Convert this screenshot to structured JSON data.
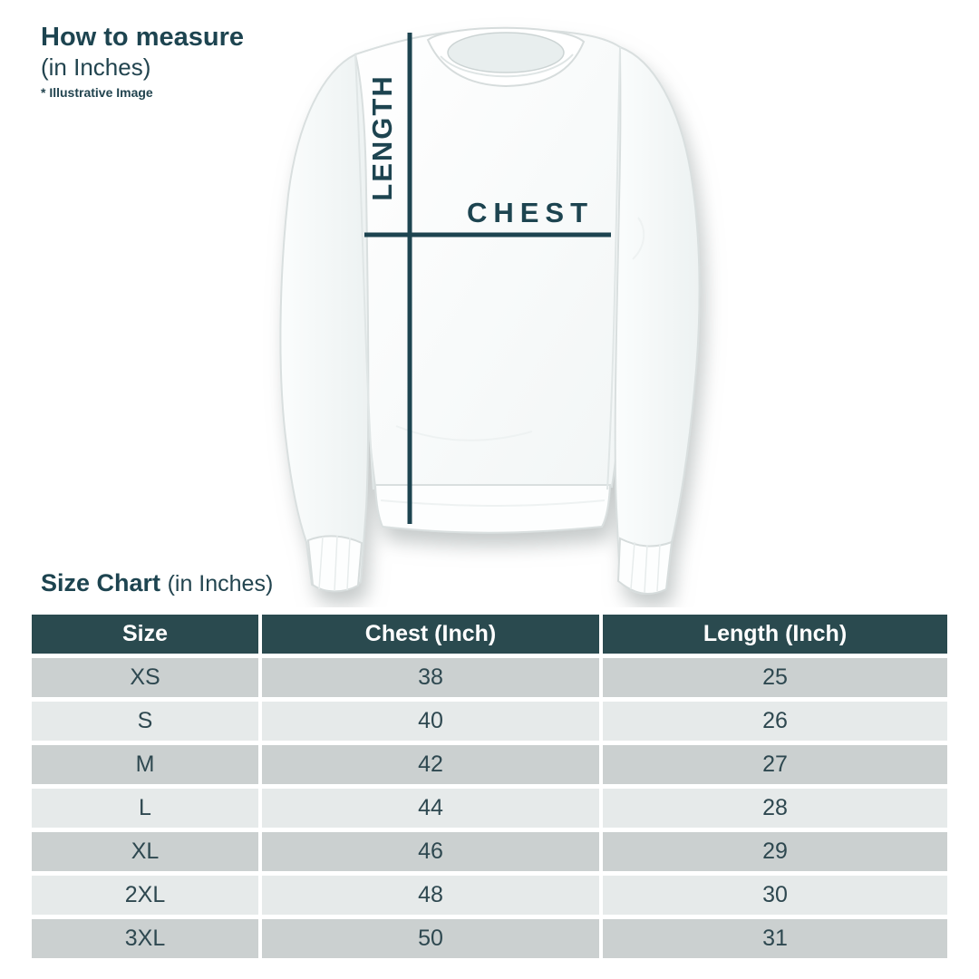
{
  "colors": {
    "accent_text": "#1d4450",
    "measure_line": "#1d4450",
    "table_header_bg": "#2a4a4f",
    "table_header_text": "#ffffff",
    "row_dark": "#cbd0d0",
    "row_light": "#e6eaea",
    "cell_text": "#2e4850"
  },
  "how_to_measure": {
    "title": "How to measure",
    "subtitle": "(in Inches)",
    "note": "* Illustrative Image"
  },
  "diagram": {
    "length_label": "LENGTH",
    "chest_label": "CHEST"
  },
  "size_chart": {
    "title": "Size Chart",
    "subtitle": "(in Inches)",
    "columns": [
      "Size",
      "Chest (Inch)",
      "Length (Inch)"
    ],
    "column_keys": [
      "size",
      "chest-inch",
      "length-inch"
    ],
    "rows": [
      [
        "XS",
        "38",
        "25"
      ],
      [
        "S",
        "40",
        "26"
      ],
      [
        "M",
        "42",
        "27"
      ],
      [
        "L",
        "44",
        "28"
      ],
      [
        "XL",
        "46",
        "29"
      ],
      [
        "2XL",
        "48",
        "30"
      ],
      [
        "3XL",
        "50",
        "31"
      ]
    ]
  }
}
